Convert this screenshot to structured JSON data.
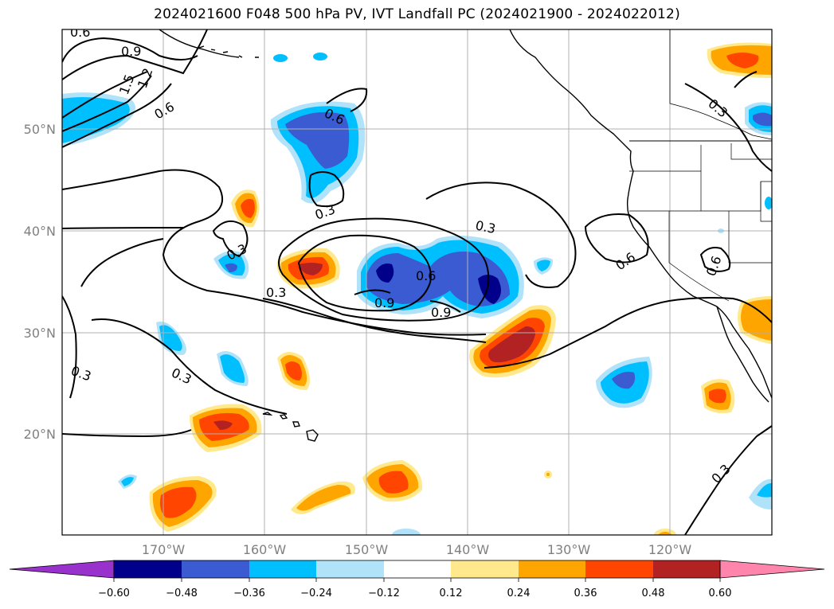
{
  "title": "2024021600 F048 500 hPa PV, IVT Landfall PC (2024021900 - 2024022012)",
  "latitude_labels": [
    "50°N",
    "40°N",
    "30°N",
    "20°N"
  ],
  "longitude_labels": [
    "170°W",
    "160°W",
    "150°W",
    "140°W",
    "130°W",
    "120°W"
  ],
  "colorbar": {
    "tick_labels": [
      "−0.60",
      "−0.48",
      "−0.36",
      "−0.24",
      "−0.12",
      "0.12",
      "0.24",
      "0.36",
      "0.48",
      "0.60"
    ],
    "colors": [
      "#9932cc",
      "#00008b",
      "#3a5bd1",
      "#00bfff",
      "#b0e2fa",
      "#ffffff",
      "#ffe98c",
      "#ffa500",
      "#ff4500",
      "#b22222",
      "#ff85ad"
    ]
  },
  "contour_labels": [
    "0.6",
    "0.9",
    "1.5",
    "1.2",
    "0.6",
    "0.6",
    "0.3",
    "0.3",
    "0.3",
    "0.6",
    "0.9",
    "0.9",
    "0.3",
    "0.6",
    "0.6",
    "0.3",
    "0.3",
    "0.3",
    "0.3"
  ],
  "colors": {
    "positive_light": "#ffe98c",
    "positive_mid": "#ffa500",
    "positive_strong": "#ff4500",
    "positive_max": "#b22222",
    "negative_light": "#b0e2fa",
    "negative_mid": "#00bfff",
    "negative_strong": "#3a5bd1",
    "negative_max": "#00008b"
  }
}
